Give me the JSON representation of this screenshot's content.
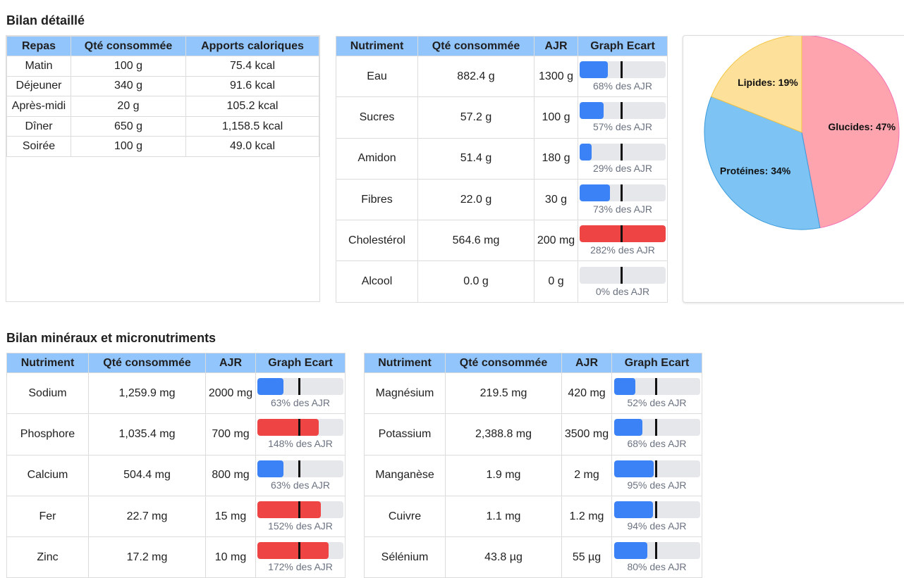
{
  "section1_title": "Bilan détaillé",
  "section2_title": "Bilan minéraux et micronutriments",
  "meals_table": {
    "headers": [
      "Repas",
      "Qté consommée",
      "Apports caloriques"
    ],
    "rows": [
      [
        "Matin",
        "100 g",
        "75.4 kcal"
      ],
      [
        "Déjeuner",
        "340 g",
        "91.6 kcal"
      ],
      [
        "Après-midi",
        "20 g",
        "105.2 kcal"
      ],
      [
        "Dîner",
        "650 g",
        "1,158.5 kcal"
      ],
      [
        "Soirée",
        "100 g",
        "49.0 kcal"
      ]
    ]
  },
  "nutrients_table": {
    "headers": [
      "Nutriment",
      "Qté consommée",
      "AJR",
      "Graph Ecart"
    ],
    "rows": [
      {
        "name": "Eau",
        "qty": "882.4 g",
        "ajr": "1300 g",
        "percent": 68,
        "label": "68% des AJR"
      },
      {
        "name": "Sucres",
        "qty": "57.2 g",
        "ajr": "100 g",
        "percent": 57,
        "label": "57% des AJR"
      },
      {
        "name": "Amidon",
        "qty": "51.4 g",
        "ajr": "180 g",
        "percent": 29,
        "label": "29% des AJR"
      },
      {
        "name": "Fibres",
        "qty": "22.0 g",
        "ajr": "30 g",
        "percent": 73,
        "label": "73% des AJR"
      },
      {
        "name": "Cholestérol",
        "qty": "564.6 mg",
        "ajr": "200 mg",
        "percent": 282,
        "label": "282% des AJR"
      },
      {
        "name": "Alcool",
        "qty": "0.0 g",
        "ajr": "0 g",
        "percent": 0,
        "label": "0% des AJR"
      }
    ]
  },
  "minerals_left": {
    "headers": [
      "Nutriment",
      "Qté consommée",
      "AJR",
      "Graph Ecart"
    ],
    "rows": [
      {
        "name": "Sodium",
        "qty": "1,259.9 mg",
        "ajr": "2000 mg",
        "percent": 63,
        "label": "63% des AJR"
      },
      {
        "name": "Phosphore",
        "qty": "1,035.4 mg",
        "ajr": "700 mg",
        "percent": 148,
        "label": "148% des AJR"
      },
      {
        "name": "Calcium",
        "qty": "504.4 mg",
        "ajr": "800 mg",
        "percent": 63,
        "label": "63% des AJR"
      },
      {
        "name": "Fer",
        "qty": "22.7 mg",
        "ajr": "15 mg",
        "percent": 152,
        "label": "152% des AJR"
      },
      {
        "name": "Zinc",
        "qty": "17.2 mg",
        "ajr": "10 mg",
        "percent": 172,
        "label": "172% des AJR"
      }
    ]
  },
  "minerals_right": {
    "headers": [
      "Nutriment",
      "Qté consommée",
      "AJR",
      "Graph Ecart"
    ],
    "rows": [
      {
        "name": "Magnésium",
        "qty": "219.5 mg",
        "ajr": "420 mg",
        "percent": 52,
        "label": "52% des AJR"
      },
      {
        "name": "Potassium",
        "qty": "2,388.8 mg",
        "ajr": "3500 mg",
        "percent": 68,
        "label": "68% des AJR"
      },
      {
        "name": "Manganèse",
        "qty": "1.9 mg",
        "ajr": "2 mg",
        "percent": 95,
        "label": "95% des AJR"
      },
      {
        "name": "Cuivre",
        "qty": "1.1 mg",
        "ajr": "1.2 mg",
        "percent": 94,
        "label": "94% des AJR"
      },
      {
        "name": "Sélénium",
        "qty": "43.8 µg",
        "ajr": "55 µg",
        "percent": 80,
        "label": "80% des AJR"
      }
    ]
  },
  "chart_data": {
    "type": "pie",
    "slices": [
      {
        "name": "Glucides",
        "value": 47,
        "label": "Glucides: 47%",
        "color": "#fda4af"
      },
      {
        "name": "Protéines",
        "value": 34,
        "label": "Protéines: 34%",
        "color": "#7dc4f5"
      },
      {
        "name": "Lipides",
        "value": 19,
        "label": "Lipides: 19%",
        "color": "#fde09a"
      }
    ]
  },
  "colors": {
    "header_bg": "#93c5fd",
    "bar_ok": "#3b82f6",
    "bar_over": "#ef4444",
    "bar_track": "#e5e7eb"
  }
}
